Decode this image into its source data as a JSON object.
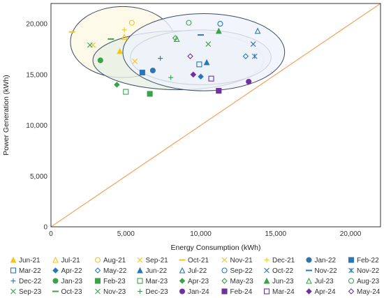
{
  "chart_data": {
    "type": "scatter",
    "xlabel": "Energy Consumption (kWh)",
    "ylabel": "Power Generation (kWh)",
    "xlim": [
      0,
      22000
    ],
    "ylim": [
      0,
      22000
    ],
    "x_ticks": [
      "0",
      "5,000",
      "10,000",
      "15,000",
      "20,000"
    ],
    "y_ticks": [
      "0",
      "5,000",
      "10,000",
      "15,000",
      "20,000"
    ],
    "grid": false,
    "legend_position": "bottom",
    "reference_line": {
      "from": [
        0,
        0
      ],
      "to": [
        22000,
        22000
      ],
      "color": "#f4a259"
    },
    "clusters": [
      {
        "color": "#fef9e3",
        "center": [
          4800,
          18200
        ],
        "radii": [
          3500,
          3500
        ]
      },
      {
        "color": "#e7f1e5",
        "center": [
          8500,
          16400
        ],
        "radii": [
          5700,
          2900
        ]
      },
      {
        "color": "#e8ecf7",
        "center": [
          10000,
          16700
        ],
        "radii": [
          4700,
          2700
        ]
      },
      {
        "color": "#eff3fa",
        "center": [
          10200,
          17200
        ],
        "radii": [
          5400,
          3800
        ]
      }
    ],
    "series": [
      {
        "name": "Jun-21",
        "marker": "triangle",
        "color": "#f5c518",
        "filled": true,
        "x": 4600,
        "y": 17300
      },
      {
        "name": "Jul-21",
        "marker": "triangle",
        "color": "#f5c518",
        "filled": false,
        "x": 4900,
        "y": 18700
      },
      {
        "name": "Aug-21",
        "marker": "circle",
        "color": "#f5c518",
        "filled": false,
        "x": 5400,
        "y": 20100
      },
      {
        "name": "Sep-21",
        "marker": "x",
        "color": "#f5c518",
        "filled": false,
        "x": 2800,
        "y": 17900
      },
      {
        "name": "Oct-21",
        "marker": "dash",
        "color": "#f5c518",
        "filled": true,
        "x": 1400,
        "y": 19200
      },
      {
        "name": "Nov-21",
        "marker": "x",
        "color": "#f5c518",
        "filled": false,
        "x": 5600,
        "y": 16300
      },
      {
        "name": "Dec-21",
        "marker": "plus",
        "color": "#f5c518",
        "filled": false,
        "x": 4900,
        "y": 19400
      },
      {
        "name": "Jan-22",
        "marker": "circle",
        "color": "#2e75b6",
        "filled": true,
        "x": 6800,
        "y": 15400
      },
      {
        "name": "Feb-22",
        "marker": "square",
        "color": "#2e75b6",
        "filled": true,
        "x": 6100,
        "y": 15200
      },
      {
        "name": "Mar-22",
        "marker": "square",
        "color": "#2e75b6",
        "filled": false,
        "x": 9900,
        "y": 16000
      },
      {
        "name": "Apr-22",
        "marker": "diamond",
        "color": "#2e75b6",
        "filled": true,
        "x": 10000,
        "y": 14800
      },
      {
        "name": "May-22",
        "marker": "diamond",
        "color": "#2e75b6",
        "filled": false,
        "x": 13000,
        "y": 16800
      },
      {
        "name": "Jun-22",
        "marker": "triangle",
        "color": "#2e75b6",
        "filled": true,
        "x": 10400,
        "y": 16200
      },
      {
        "name": "Jul-22",
        "marker": "triangle",
        "color": "#2e75b6",
        "filled": false,
        "x": 13800,
        "y": 19300
      },
      {
        "name": "Sep-22",
        "marker": "circle",
        "color": "#2e75b6",
        "filled": false,
        "x": 11300,
        "y": 20000
      },
      {
        "name": "Oct-22",
        "marker": "x",
        "color": "#2e75b6",
        "filled": false,
        "x": 13500,
        "y": 18000
      },
      {
        "name": "Nov-22",
        "marker": "dash",
        "color": "#2e75b6",
        "filled": true,
        "x": 10000,
        "y": 18900
      },
      {
        "name": "Nov-22",
        "marker": "star",
        "color": "#2e75b6",
        "filled": false,
        "x": 13600,
        "y": 16800
      },
      {
        "name": "Dec-22",
        "marker": "plus",
        "color": "#2e75b6",
        "filled": false,
        "x": 7300,
        "y": 16600
      },
      {
        "name": "Jan-23",
        "marker": "circle",
        "color": "#3aa34a",
        "filled": true,
        "x": 3300,
        "y": 16400
      },
      {
        "name": "Feb-23",
        "marker": "square",
        "color": "#3aa34a",
        "filled": true,
        "x": 6600,
        "y": 13100
      },
      {
        "name": "Mar-23",
        "marker": "square",
        "color": "#3aa34a",
        "filled": false,
        "x": 5000,
        "y": 13300
      },
      {
        "name": "Apr-23",
        "marker": "diamond",
        "color": "#3aa34a",
        "filled": true,
        "x": 4400,
        "y": 14000
      },
      {
        "name": "May-23",
        "marker": "diamond",
        "color": "#3aa34a",
        "filled": false,
        "x": 8300,
        "y": 18600
      },
      {
        "name": "Jun-23",
        "marker": "triangle",
        "color": "#3aa34a",
        "filled": true,
        "x": 11200,
        "y": 19300
      },
      {
        "name": "Jul-23",
        "marker": "triangle",
        "color": "#3aa34a",
        "filled": false,
        "x": 8400,
        "y": 18500
      },
      {
        "name": "Aug-23",
        "marker": "circle",
        "color": "#3aa34a",
        "filled": false,
        "x": 9200,
        "y": 20100
      },
      {
        "name": "Sep-23",
        "marker": "x",
        "color": "#3aa34a",
        "filled": false,
        "x": 2600,
        "y": 17900
      },
      {
        "name": "Oct-23",
        "marker": "dash",
        "color": "#3aa34a",
        "filled": true,
        "x": 4000,
        "y": 18500
      },
      {
        "name": "Nov-23",
        "marker": "x",
        "color": "#3aa34a",
        "filled": false,
        "x": 10500,
        "y": 18000
      },
      {
        "name": "Dec-23",
        "marker": "plus",
        "color": "#3aa34a",
        "filled": false,
        "x": 8000,
        "y": 14700
      },
      {
        "name": "Jan-24",
        "marker": "circle",
        "color": "#7030a0",
        "filled": true,
        "x": 13200,
        "y": 14300
      },
      {
        "name": "Feb-24",
        "marker": "square",
        "color": "#7030a0",
        "filled": true,
        "x": 11200,
        "y": 13400
      },
      {
        "name": "Mar-24",
        "marker": "square",
        "color": "#7030a0",
        "filled": false,
        "x": 10700,
        "y": 14600
      },
      {
        "name": "Apr-24",
        "marker": "diamond",
        "color": "#7030a0",
        "filled": true,
        "x": 9500,
        "y": 15000
      },
      {
        "name": "May-24",
        "marker": "diamond",
        "color": "#7030a0",
        "filled": false,
        "x": 9300,
        "y": 16800
      }
    ]
  },
  "legend_rows": [
    [
      "Jun-21",
      "Jul-21",
      "Aug-21",
      "Sep-21",
      "Oct-21",
      "Nov-21",
      "Dec-21",
      "Jan-22",
      "Feb-22"
    ],
    [
      "Mar-22",
      "Apr-22",
      "May-22",
      "Jun-22",
      "Jul-22",
      "Sep-22",
      "Oct-22",
      "Nov-22",
      "Nov-22"
    ],
    [
      "Dec-22",
      "Jan-23",
      "Feb-23",
      "Mar-23",
      "Apr-23",
      "May-23",
      "Jun-23",
      "Jul-23",
      "Aug-23"
    ],
    [
      "Sep-23",
      "Oct-23",
      "Nov-23",
      "Dec-23",
      "Jan-24",
      "Feb-24",
      "Mar-24",
      "Apr-24",
      "May-24"
    ]
  ]
}
